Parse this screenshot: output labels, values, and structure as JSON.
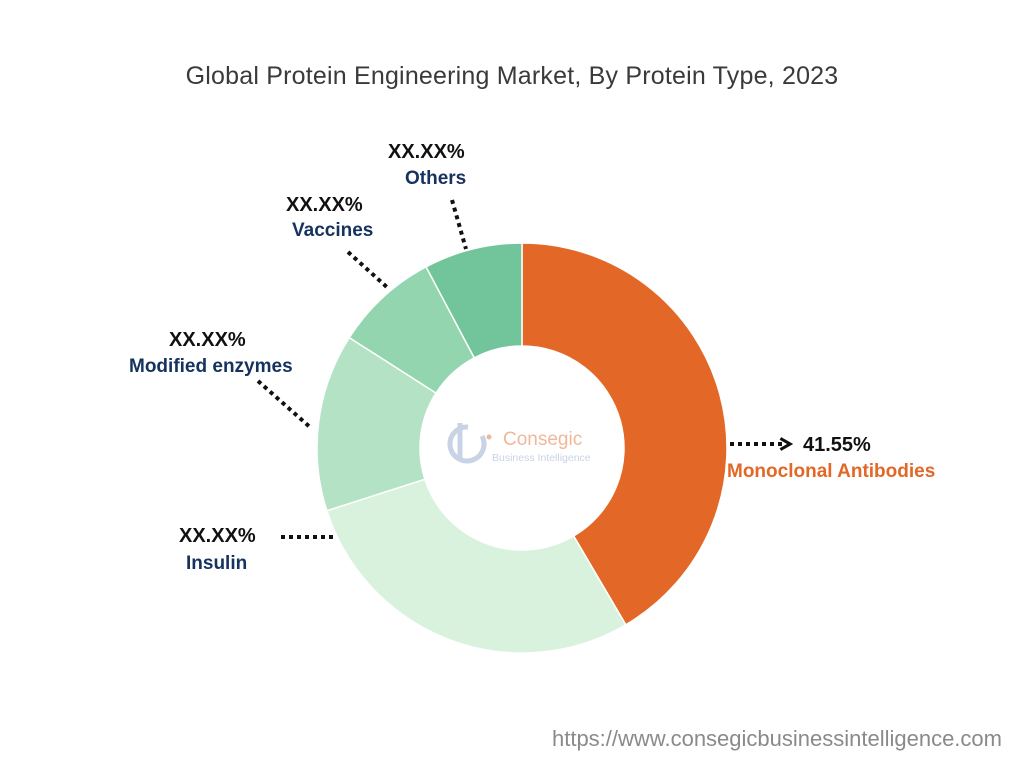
{
  "title": "Global Protein Engineering Market, By Protein Type, 2023",
  "source_url": "https://www.consegicbusinessintelligence.com",
  "logo": {
    "name": "Consegic",
    "tagline": "Business Intelligence"
  },
  "chart_data": {
    "type": "pie",
    "variant": "donut",
    "title": "Global Protein Engineering Market, By Protein Type, 2023",
    "unit": "%",
    "slices": [
      {
        "category": "Monoclonal Antibodies",
        "value": 41.55,
        "label": "41.55%",
        "color": "#e36727"
      },
      {
        "category": "Insulin",
        "value": 28.5,
        "label": "XX.XX%",
        "color": "#d9f2dd"
      },
      {
        "category": "Modified enzymes",
        "value": 14.0,
        "label": "XX.XX%",
        "color": "#b3e3c4"
      },
      {
        "category": "Vaccines",
        "value": 8.2,
        "label": "XX.XX%",
        "color": "#93d5ae"
      },
      {
        "category": "Others",
        "value": 7.75,
        "label": "XX.XX%",
        "color": "#72c59a"
      }
    ]
  }
}
